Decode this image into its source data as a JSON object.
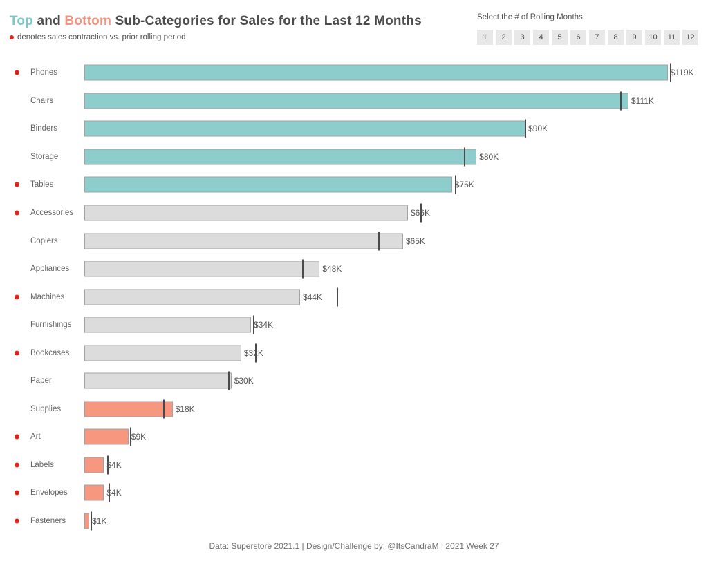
{
  "header": {
    "title_top": "Top",
    "title_and": " and ",
    "title_bottom": "Bottom",
    "title_rest": " Sub-Categories for Sales for the Last 12 Months",
    "subtitle": "denotes sales contraction vs. prior rolling period"
  },
  "selector": {
    "label": "Select the # of Rolling Months",
    "options": [
      "1",
      "2",
      "3",
      "4",
      "5",
      "6",
      "7",
      "8",
      "9",
      "10",
      "11",
      "12"
    ]
  },
  "chart_data": {
    "type": "bar",
    "orientation": "horizontal",
    "title": "Top and Bottom Sub-Categories for Sales for the Last 12 Months",
    "unit": "USD thousands",
    "xlim": [
      0,
      125
    ],
    "categories": [
      "Phones",
      "Chairs",
      "Binders",
      "Storage",
      "Tables",
      "Accessories",
      "Copiers",
      "Appliances",
      "Machines",
      "Furnishings",
      "Bookcases",
      "Paper",
      "Supplies",
      "Art",
      "Labels",
      "Envelopes",
      "Fasteners"
    ],
    "values": [
      119,
      111,
      90,
      80,
      75,
      66,
      65,
      48,
      44,
      34,
      32,
      30,
      18,
      9,
      4,
      4,
      1
    ],
    "value_labels": [
      "$119K",
      "$111K",
      "$90K",
      "$80K",
      "$75K",
      "$66K",
      "$65K",
      "$48K",
      "$44K",
      "$34K",
      "$32K",
      "$30K",
      "$18K",
      "$9K",
      "$4K",
      "$4K",
      "$1K"
    ],
    "prior_period_values": [
      119.4,
      109.3,
      89.8,
      77.5,
      75.6,
      68.5,
      60.0,
      44.4,
      51.5,
      34.4,
      34.8,
      29.3,
      16.1,
      9.3,
      4.7,
      4.9,
      1.3
    ],
    "contraction": [
      true,
      false,
      false,
      false,
      true,
      true,
      false,
      false,
      true,
      false,
      true,
      false,
      false,
      true,
      true,
      true,
      true
    ],
    "group": [
      "top",
      "top",
      "top",
      "top",
      "top",
      "mid",
      "mid",
      "mid",
      "mid",
      "mid",
      "mid",
      "mid",
      "bottom",
      "bottom",
      "bottom",
      "bottom",
      "bottom"
    ],
    "legend_note": "red dot denotes sales contraction vs. prior rolling period; dark tick = prior rolling period sales"
  },
  "colors": {
    "top_bar": "#8dcdcb",
    "mid_bar": "#dcdcdc",
    "bottom_bar": "#f8977f",
    "contraction_dot": "#e2231a",
    "prior_tick": "#4a4a4a",
    "bar_border": "#a3a3a3"
  },
  "footer": {
    "text": "Data: Superstore 2021.1 | Design/Challenge by: @ItsCandraM | 2021 Week 27"
  }
}
